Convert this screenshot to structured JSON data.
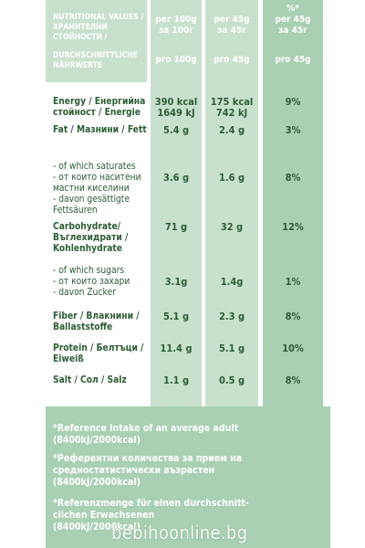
{
  "header": {
    "label_lines": [
      "NUTRITIONAL VALUES /",
      "ХРАНИТЕЛНИ",
      "СТОЙНОСТИ /",
      "DURCHSCHNITTLICHE",
      "NÄHRWERTE"
    ],
    "col1_lines": [
      "per 100g",
      "за 100г",
      "pro 100g"
    ],
    "col2_lines": [
      "per 45g",
      "за 45г",
      "pro 45g"
    ],
    "col3_lines": [
      "%*",
      "per 45g",
      "за 45г",
      "pro 45g"
    ]
  },
  "rows": [
    {
      "label": [
        "Energy / Енергийна",
        "стойност / Energie"
      ],
      "bold": [
        true,
        true
      ],
      "v1": [
        "390 kcal",
        "1649 kJ"
      ],
      "v2": [
        "175 kcal",
        "742 kJ"
      ],
      "v3": [
        "9%"
      ]
    },
    {
      "label": [
        "Fat / Мазнини / Fett"
      ],
      "bold": [
        true
      ],
      "v1": [
        "5.4  g"
      ],
      "v2": [
        "2.4  g"
      ],
      "v3": [
        "3%"
      ]
    },
    {
      "label": [
        "- of which saturates",
        "- от които наситени",
        "  мастни киселини",
        "- davon gesättigte",
        "  Fettsäuren"
      ],
      "bold": [
        false,
        false,
        false,
        false,
        false
      ],
      "v1": [
        "3.6 g"
      ],
      "v2": [
        "1.6 g"
      ],
      "v3": [
        "8%"
      ]
    },
    {
      "label": [
        "Carbohydrate/",
        "Въглехидрати /",
        "Kohlenhydrate"
      ],
      "bold": [
        true,
        true,
        true
      ],
      "v1": [
        "71 g"
      ],
      "v2": [
        "32 g"
      ],
      "v3": [
        "12%"
      ]
    },
    {
      "label": [
        "- of which sugars",
        "- от които захари",
        "- davon Zucker"
      ],
      "bold": [
        false,
        false,
        false
      ],
      "v1": [
        "3.1g"
      ],
      "v2": [
        "1.4g"
      ],
      "v3": [
        "1%"
      ]
    },
    {
      "label": [
        "Fiber / Влакнини /",
        "Ballaststoffe"
      ],
      "bold": [
        true,
        true
      ],
      "v1": [
        "5.1 g"
      ],
      "v2": [
        "2.3 g"
      ],
      "v3": [
        "8%"
      ]
    },
    {
      "label": [
        "Protein / Белтъци /",
        "Eiweiß"
      ],
      "bold": [
        true,
        true
      ],
      "v1": [
        "11.4 g"
      ],
      "v2": [
        "5.1 g"
      ],
      "v3": [
        "10%"
      ]
    },
    {
      "label": [
        "Salt / Сол / Salz"
      ],
      "bold": [
        true
      ],
      "v1": [
        "1.1 g"
      ],
      "v2": [
        "0.5 g"
      ],
      "v3": [
        "8%"
      ]
    }
  ],
  "footer": {
    "notes": [
      [
        "*Reference intake of an average adult",
        "(8400kJ/2000kcal)"
      ],
      [
        "*Референтни количества за прием на",
        "средностатистически възрастен",
        "(8400kJ/2000kcal)"
      ],
      [
        "*Referenzmenge für einen durchschnitt-",
        "clichen Erwachsenen",
        "(8400kJ/2000kcal)"
      ]
    ]
  },
  "watermark": "bebihoonline.bg"
}
